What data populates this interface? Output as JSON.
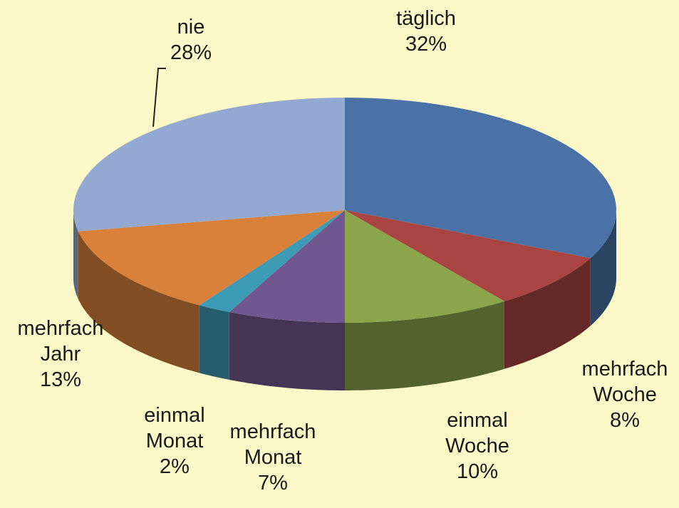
{
  "chart_data": {
    "type": "pie3d",
    "categories": [
      "täglich",
      "mehrfach Woche",
      "einmal Woche",
      "mehrfach Monat",
      "einmal Monat",
      "mehrfach Jahr",
      "nie"
    ],
    "values": [
      32,
      8,
      10,
      7,
      2,
      13,
      28
    ],
    "value_labels": [
      "32%",
      "8%",
      "10%",
      "7%",
      "2%",
      "13%",
      "28%"
    ],
    "colors": [
      "#4a72a6",
      "#a94442",
      "#8aa54b",
      "#71578f",
      "#3e9bb5",
      "#d9813b",
      "#94a9d1"
    ]
  }
}
